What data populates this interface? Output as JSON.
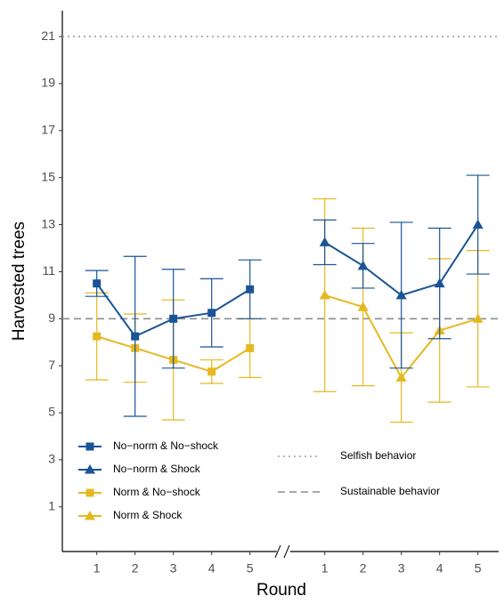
{
  "chart_data": {
    "type": "line",
    "x_label": "Round",
    "y_label": "Harvested trees",
    "x": [
      1,
      2,
      3,
      4,
      5
    ],
    "xticks": [
      1,
      2,
      3,
      4,
      5
    ],
    "xlim": [
      0.1,
      5.7
    ],
    "ylim": [
      -0.9,
      22.1
    ],
    "yticks": [
      1,
      3,
      5,
      7,
      9,
      11,
      13,
      15,
      17,
      19,
      21
    ],
    "reference_lines": [
      {
        "value": 21,
        "label": "Selfish behavior",
        "style": "dotted",
        "color": "#a0a0a0"
      },
      {
        "value": 9,
        "label": "Sustainable behavior",
        "style": "dashed",
        "color": "#8c8c8c"
      }
    ],
    "series": [
      {
        "name": "No−norm & No−shock",
        "color": "#1a5496",
        "marker": "square",
        "panel": 0,
        "values": [
          10.5,
          8.25,
          9.0,
          9.25,
          10.25
        ],
        "errors": [
          0.55,
          3.4,
          2.1,
          1.45,
          1.25
        ]
      },
      {
        "name": "No−norm & Shock",
        "color": "#1a5496",
        "marker": "triangle",
        "panel": 1,
        "values": [
          12.25,
          11.25,
          10.0,
          10.5,
          13.0
        ],
        "errors": [
          0.95,
          0.95,
          3.1,
          2.35,
          2.1
        ]
      },
      {
        "name": "Norm & No−shock",
        "color": "#e6b820",
        "marker": "square",
        "panel": 0,
        "values": [
          8.25,
          7.75,
          7.25,
          6.75,
          7.75
        ],
        "errors": [
          1.85,
          1.45,
          2.55,
          0.5,
          1.25
        ]
      },
      {
        "name": "Norm & Shock",
        "color": "#e6b820",
        "marker": "triangle",
        "panel": 1,
        "values": [
          10.0,
          9.5,
          6.5,
          8.5,
          9.0
        ],
        "errors": [
          4.1,
          3.35,
          1.9,
          3.05,
          2.9
        ]
      }
    ]
  }
}
